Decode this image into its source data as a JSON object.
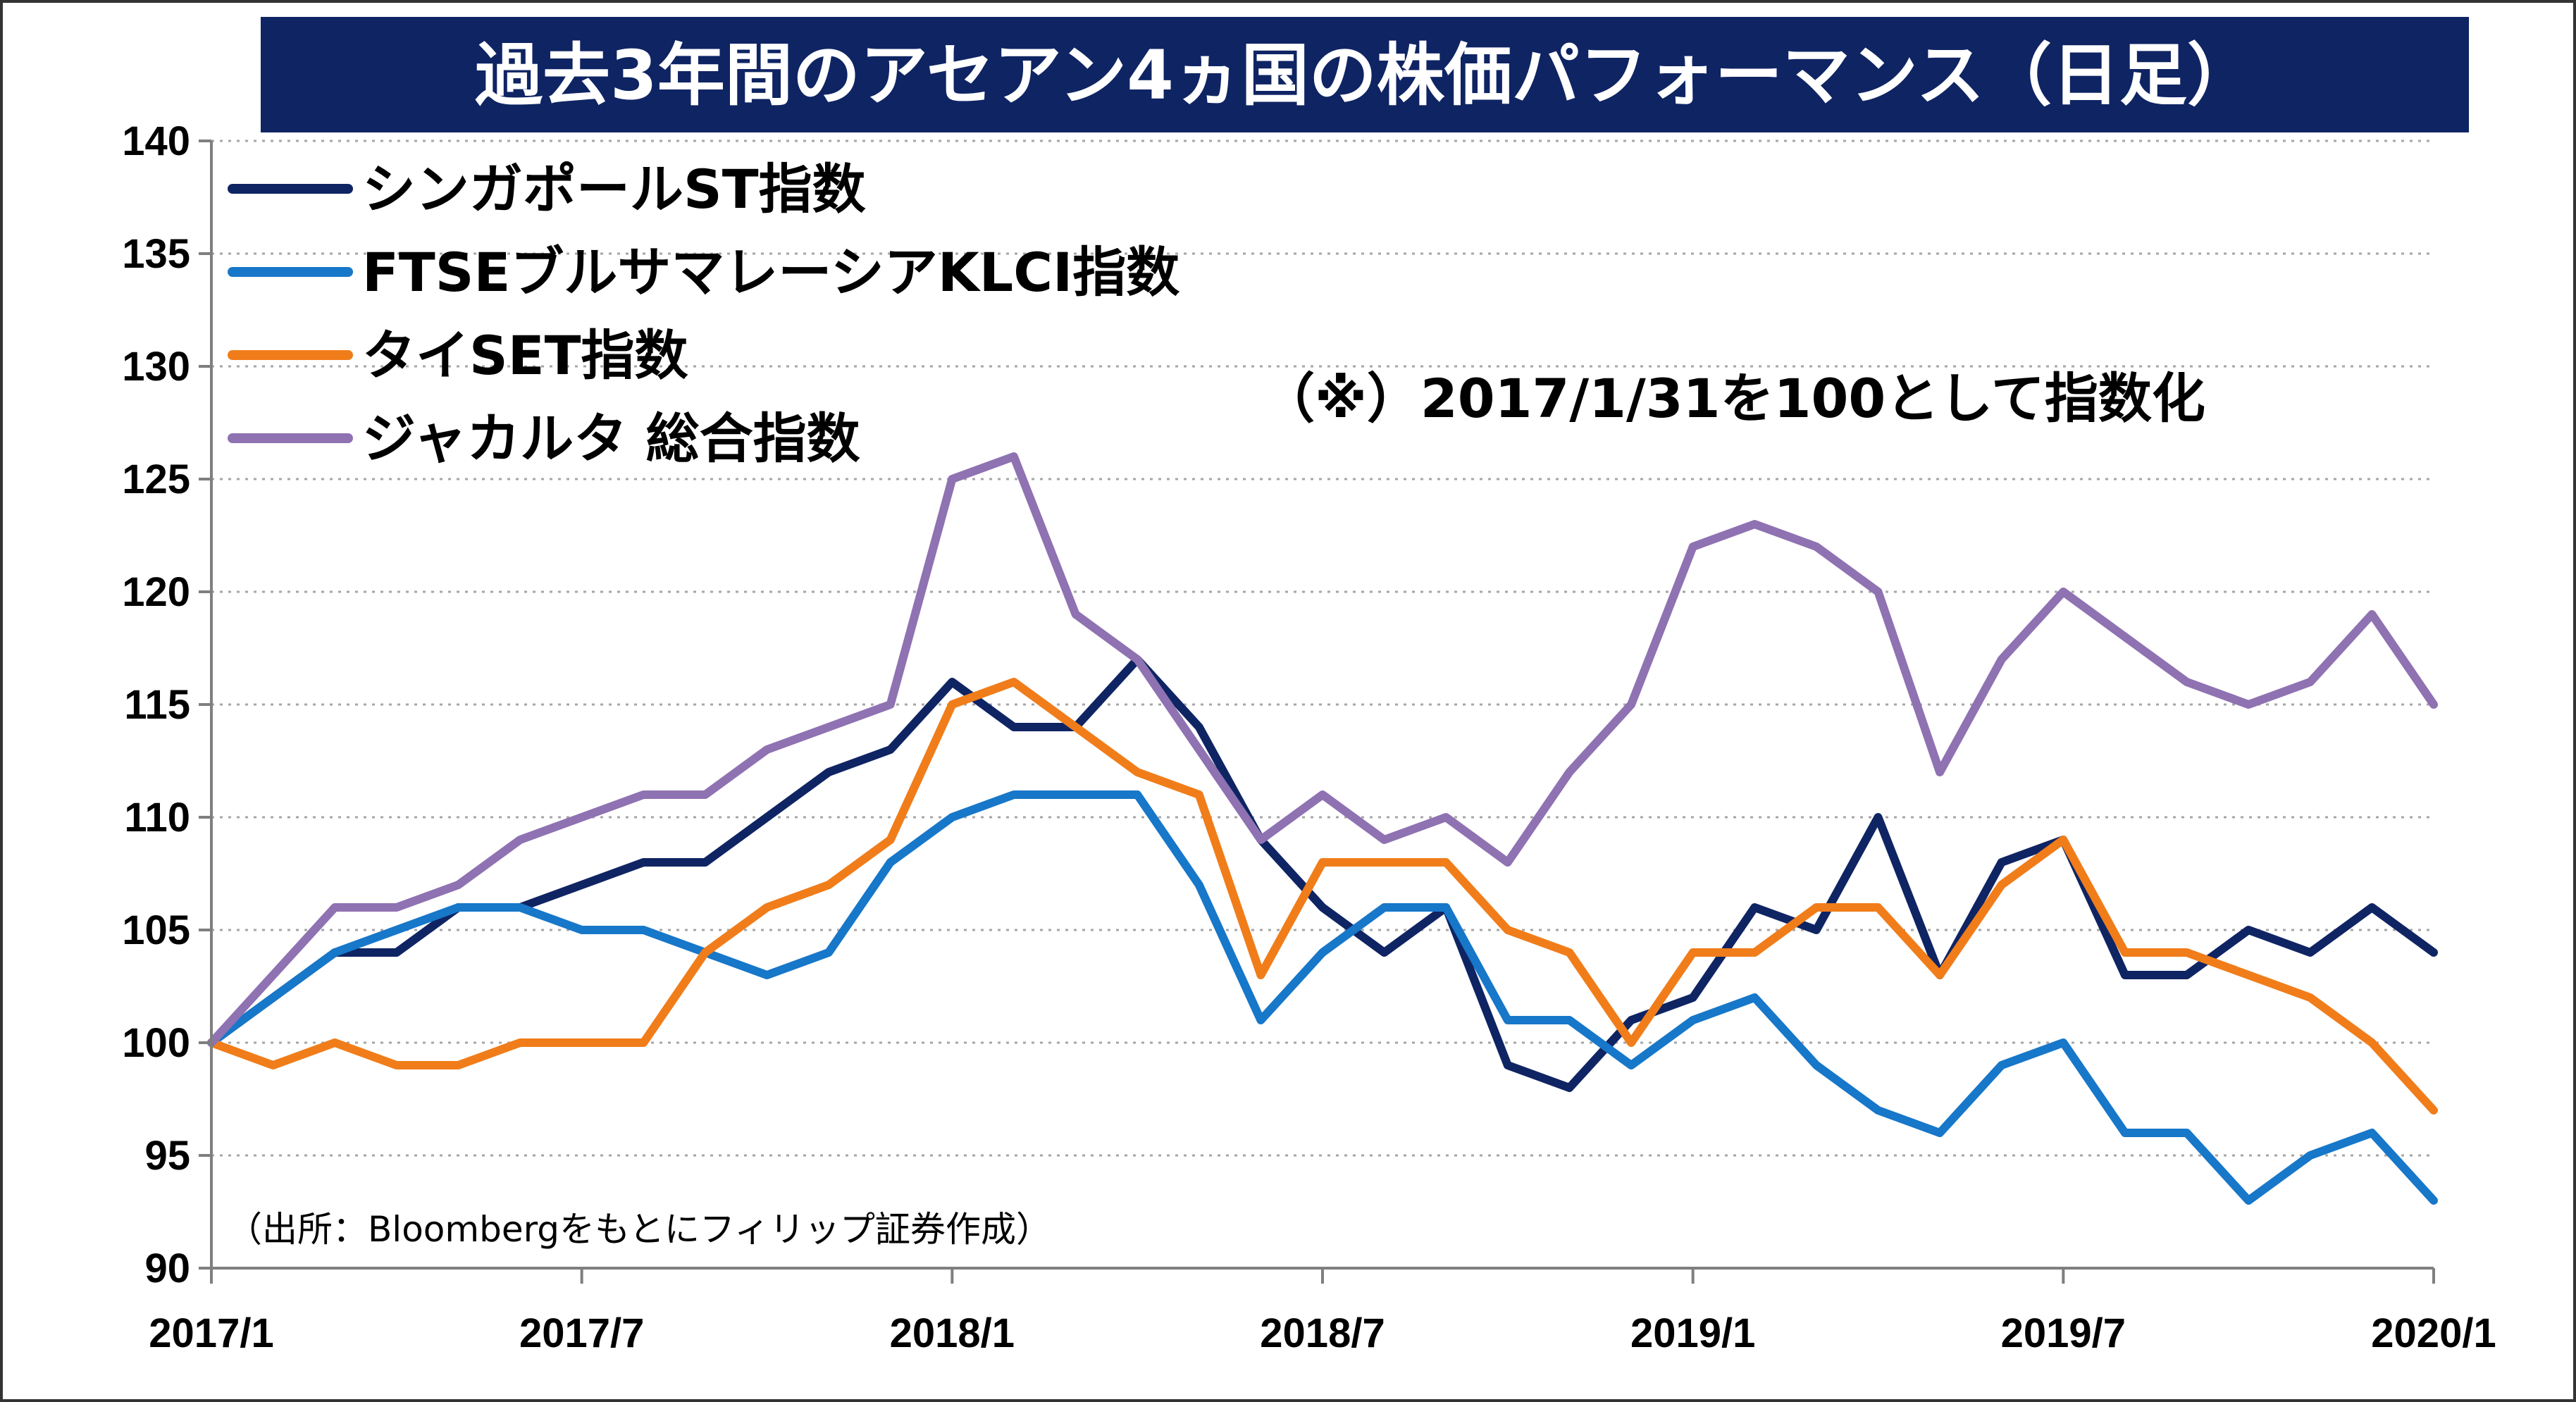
{
  "chart_data": {
    "type": "line",
    "title": "過去3年間のアセアン4ヵ国の株価パフォーマンス（日足）",
    "note": "（※）2017/1/31を100として指数化",
    "source": "（出所：Bloombergをもとにフィリップ証券作成）",
    "xlabel": "",
    "ylabel": "",
    "ylim": [
      90,
      140
    ],
    "yticks": [
      90,
      95,
      100,
      105,
      110,
      115,
      120,
      125,
      130,
      135,
      140
    ],
    "xlim": [
      "2017-01",
      "2020-01"
    ],
    "xticks": [
      "2017/1",
      "2017/7",
      "2018/1",
      "2018/7",
      "2019/1",
      "2019/7",
      "2020/1"
    ],
    "grid": true,
    "legend_position": "top-left",
    "x": [
      "2017-01",
      "2017-02",
      "2017-03",
      "2017-04",
      "2017-05",
      "2017-06",
      "2017-07",
      "2017-08",
      "2017-09",
      "2017-10",
      "2017-11",
      "2017-12",
      "2018-01",
      "2018-02",
      "2018-03",
      "2018-04",
      "2018-05",
      "2018-06",
      "2018-07",
      "2018-08",
      "2018-09",
      "2018-10",
      "2018-11",
      "2018-12",
      "2019-01",
      "2019-02",
      "2019-03",
      "2019-04",
      "2019-05",
      "2019-06",
      "2019-07",
      "2019-08",
      "2019-09",
      "2019-10",
      "2019-11",
      "2019-12",
      "2020-01"
    ],
    "series": [
      {
        "name": "シンガポールST指数",
        "color": "#0f2463",
        "values": [
          100,
          102,
          104,
          104,
          106,
          106,
          107,
          108,
          108,
          110,
          112,
          113,
          116,
          114,
          114,
          117,
          114,
          109,
          106,
          104,
          106,
          99,
          98,
          101,
          102,
          106,
          105,
          110,
          103,
          108,
          109,
          103,
          103,
          105,
          104,
          106,
          104
        ]
      },
      {
        "name": "FTSEブルサマレーシアKLCI指数",
        "color": "#1777c9",
        "values": [
          100,
          102,
          104,
          105,
          106,
          106,
          105,
          105,
          104,
          103,
          104,
          108,
          110,
          111,
          111,
          111,
          107,
          101,
          104,
          106,
          106,
          101,
          101,
          99,
          101,
          102,
          99,
          97,
          96,
          99,
          100,
          96,
          96,
          93,
          95,
          96,
          93
        ]
      },
      {
        "name": "タイSET指数",
        "color": "#f07d1a",
        "values": [
          100,
          99,
          100,
          99,
          99,
          100,
          100,
          100,
          104,
          106,
          107,
          109,
          115,
          116,
          114,
          112,
          111,
          103,
          108,
          108,
          108,
          105,
          104,
          100,
          104,
          104,
          106,
          106,
          103,
          107,
          109,
          104,
          104,
          103,
          102,
          100,
          97
        ]
      },
      {
        "name": "ジャカルタ 総合指数",
        "color": "#8f72b2",
        "values": [
          100,
          103,
          106,
          106,
          107,
          109,
          110,
          111,
          111,
          113,
          114,
          115,
          125,
          126,
          119,
          117,
          113,
          109,
          111,
          109,
          110,
          108,
          112,
          115,
          122,
          123,
          122,
          120,
          112,
          117,
          120,
          118,
          116,
          115,
          116,
          119,
          115
        ]
      }
    ]
  }
}
